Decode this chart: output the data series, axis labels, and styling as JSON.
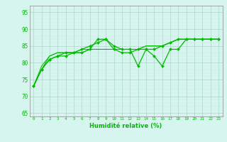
{
  "xlabel": "Humidité relative (%)",
  "xlim": [
    -0.5,
    23.5
  ],
  "ylim": [
    64,
    97
  ],
  "yticks": [
    65,
    70,
    75,
    80,
    85,
    90,
    95
  ],
  "xticks": [
    0,
    1,
    2,
    3,
    4,
    5,
    6,
    7,
    8,
    9,
    10,
    11,
    12,
    13,
    14,
    15,
    16,
    17,
    18,
    19,
    20,
    21,
    22,
    23
  ],
  "bg_color": "#d6f5ef",
  "line_color": "#00bb00",
  "grid_major_color": "#aad4c8",
  "grid_minor_color": "#c4e8e0",
  "series": [
    [
      73,
      78,
      81,
      82,
      82,
      83,
      83,
      84,
      87,
      87,
      84,
      83,
      83,
      84,
      84,
      84,
      85,
      86,
      87,
      87,
      87,
      87,
      87,
      87
    ],
    [
      73,
      78,
      81,
      82,
      83,
      83,
      84,
      85,
      86,
      87,
      85,
      84,
      84,
      79,
      84,
      82,
      79,
      84,
      84,
      87,
      87,
      87,
      87,
      87
    ],
    [
      73,
      78,
      82,
      83,
      83,
      83,
      83,
      84,
      84,
      84,
      84,
      84,
      84,
      84,
      85,
      85,
      85,
      86,
      87,
      87,
      87,
      87,
      87,
      87
    ],
    [
      73,
      79,
      82,
      83,
      83,
      83,
      84,
      84,
      84,
      84,
      84,
      84,
      84,
      84,
      85,
      85,
      85,
      86,
      87,
      87,
      87,
      87,
      87,
      87
    ]
  ],
  "markers": [
    true,
    true,
    false,
    false
  ],
  "linewidths": [
    0.9,
    0.9,
    0.7,
    0.7
  ]
}
